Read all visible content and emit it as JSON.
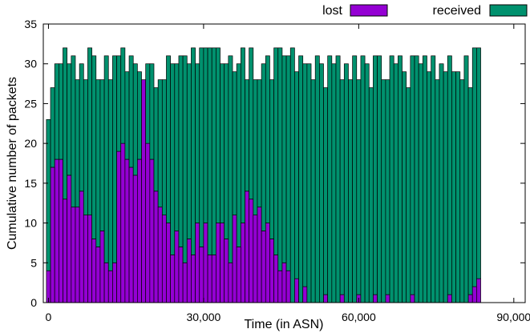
{
  "chart_data": {
    "type": "bar",
    "stacked": true,
    "xlabel": "Time (in ASN)",
    "ylabel": "Cumulative number of packets",
    "xlim": [
      -1000,
      92200
    ],
    "ylim": [
      0,
      35
    ],
    "xticks": [
      0,
      30000,
      60000,
      90000
    ],
    "xtick_labels": [
      "0",
      "30,000",
      "60,000",
      "90,000"
    ],
    "yticks": [
      0,
      5,
      10,
      15,
      20,
      25,
      30,
      35
    ],
    "ytick_labels": [
      "0",
      "5",
      "10",
      "15",
      "20",
      "25",
      "30",
      "35"
    ],
    "grid": false,
    "legend_position": "top-right",
    "x_start": 0,
    "x_step": 800,
    "series": [
      {
        "name": "lost",
        "color": "#9400d3",
        "values": [
          4,
          17,
          18,
          18,
          13,
          16,
          12,
          12,
          14,
          11,
          11,
          8,
          7,
          9,
          5,
          4,
          5,
          19,
          20,
          18,
          17,
          16,
          18,
          28,
          20,
          18,
          14,
          12,
          11,
          10,
          6,
          9,
          7,
          5,
          8,
          6,
          10,
          7,
          10,
          6,
          6,
          10,
          10,
          8,
          5,
          11,
          7,
          10,
          14,
          13,
          11,
          12,
          9,
          10,
          8,
          6,
          4,
          5,
          4,
          0,
          3,
          0,
          2,
          0,
          0,
          0,
          0,
          1,
          0,
          0,
          0,
          1,
          0,
          0,
          0,
          1,
          0,
          0,
          0,
          1,
          0,
          0,
          1,
          0,
          0,
          0,
          0,
          0,
          1,
          0,
          0,
          0,
          0,
          0,
          0,
          0,
          0,
          1,
          0,
          0,
          0,
          0,
          1,
          2,
          3
        ]
      },
      {
        "name": "received",
        "color": "#00916e",
        "values": [
          19,
          10,
          12,
          12,
          19,
          14,
          19,
          16,
          16,
          17,
          21,
          23,
          21,
          19,
          26,
          24,
          26,
          12,
          12,
          11,
          14,
          14,
          11,
          0,
          10,
          12,
          13,
          16,
          17,
          21,
          24,
          21,
          24,
          26,
          22,
          26,
          20,
          25,
          22,
          26,
          26,
          22,
          20,
          22,
          26,
          18,
          23,
          22,
          14,
          19,
          17,
          16,
          21,
          21,
          20,
          26,
          28,
          26,
          27,
          32,
          26,
          31,
          28,
          30,
          28,
          31,
          30,
          26,
          31,
          30,
          31,
          27,
          30,
          28,
          31,
          27,
          31,
          30,
          27,
          30,
          31,
          28,
          27,
          31,
          30,
          31,
          29,
          27,
          30,
          31,
          30,
          31,
          29,
          31,
          28,
          30,
          29,
          30,
          29,
          29,
          28,
          31,
          26,
          30,
          29
        ]
      }
    ]
  }
}
